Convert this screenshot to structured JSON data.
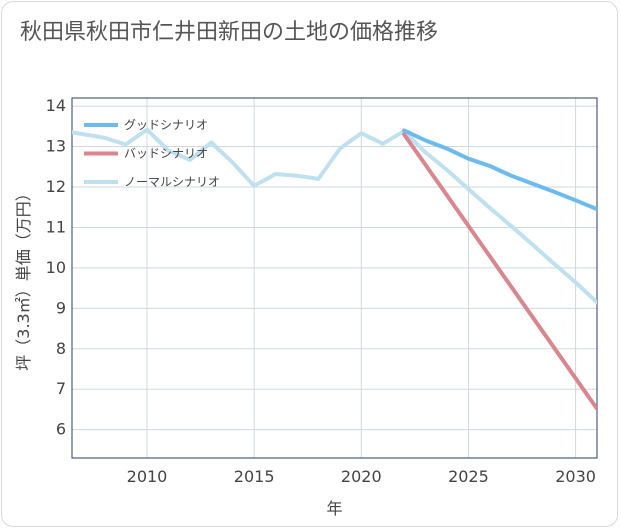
{
  "title": "秋田県秋田市仁井田新田の土地の価格推移",
  "colors": {
    "good": "#6cbbef",
    "bad": "#d9868e",
    "normal": "#bfe0ee",
    "grid": "#cfd8e0",
    "axis": "#2a3f5f"
  },
  "chart_data": {
    "type": "line",
    "title": "秋田県秋田市仁井田新田の土地の価格推移",
    "xlabel": "年",
    "ylabel": "坪（3.3㎡）単価（万円）",
    "xlim": [
      2006.5,
      2031
    ],
    "ylim": [
      5.3,
      14.2
    ],
    "x_ticks": [
      2010,
      2015,
      2020,
      2025,
      2030
    ],
    "y_ticks": [
      6,
      7,
      8,
      9,
      10,
      11,
      12,
      13,
      14
    ],
    "grid": true,
    "legend_position": "top-left",
    "series": [
      {
        "name": "グッドシナリオ",
        "color_key": "good",
        "x": [
          2022,
          2023,
          2024,
          2025,
          2026,
          2027,
          2028,
          2029,
          2030,
          2031
        ],
        "y": [
          13.4,
          13.15,
          12.95,
          12.7,
          12.52,
          12.28,
          12.08,
          11.88,
          11.67,
          11.45
        ]
      },
      {
        "name": "バッドシナリオ",
        "color_key": "bad",
        "x": [
          2022,
          2031
        ],
        "y": [
          13.3,
          6.52
        ]
      },
      {
        "name": "ノーマルシナリオ",
        "color_key": "normal",
        "x": [
          2006.5,
          2008,
          2009,
          2010,
          2011,
          2012,
          2013,
          2014,
          2015,
          2016,
          2017,
          2018,
          2019,
          2020,
          2021,
          2022,
          2023,
          2024,
          2025,
          2026,
          2027,
          2028,
          2029,
          2030,
          2031
        ],
        "y": [
          13.35,
          13.22,
          13.05,
          13.42,
          12.9,
          12.67,
          13.1,
          12.6,
          12.03,
          12.32,
          12.28,
          12.2,
          12.95,
          13.33,
          13.07,
          13.38,
          12.85,
          12.42,
          11.95,
          11.48,
          11.03,
          10.57,
          10.1,
          9.64,
          9.15
        ]
      }
    ]
  }
}
